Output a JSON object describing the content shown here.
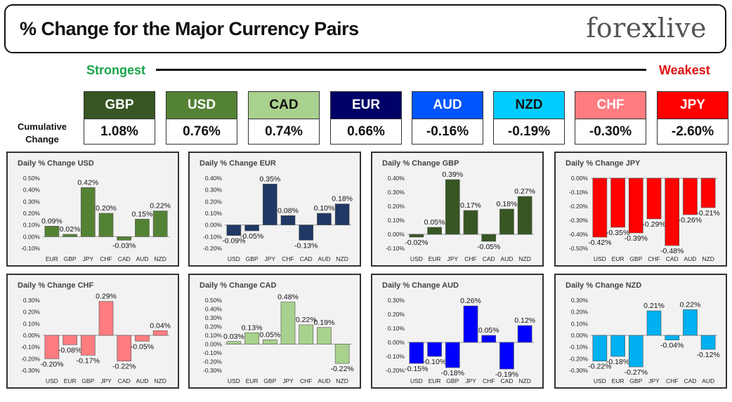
{
  "header": {
    "title": "% Change for the Major Currency Pairs",
    "logo_left": "fore",
    "logo_x": "x",
    "logo_right": "live"
  },
  "scale": {
    "strongest": "Strongest",
    "weakest": "Weakest",
    "cumulative_label": "Cumulative Change"
  },
  "summary": [
    {
      "currency": "GBP",
      "value": "1.08%",
      "color": "#375623",
      "text_color": "#ffffff"
    },
    {
      "currency": "USD",
      "value": "0.76%",
      "color": "#548235",
      "text_color": "#ffffff"
    },
    {
      "currency": "CAD",
      "value": "0.74%",
      "color": "#a9d18e",
      "text_color": "#111111"
    },
    {
      "currency": "EUR",
      "value": "0.66%",
      "color": "#000066",
      "text_color": "#ffffff"
    },
    {
      "currency": "AUD",
      "value": "-0.16%",
      "color": "#0055ff",
      "text_color": "#ffffff"
    },
    {
      "currency": "NZD",
      "value": "-0.19%",
      "color": "#00ccff",
      "text_color": "#111111"
    },
    {
      "currency": "CHF",
      "value": "-0.30%",
      "color": "#ff7c80",
      "text_color": "#ffffff"
    },
    {
      "currency": "JPY",
      "value": "-2.60%",
      "color": "#ff0000",
      "text_color": "#ffffff"
    }
  ],
  "chart_data": [
    {
      "type": "bar",
      "title": "Daily % Change USD",
      "categories": [
        "EUR",
        "GBP",
        "JPY",
        "CHF",
        "CAD",
        "AUD",
        "NZD"
      ],
      "values": [
        0.09,
        0.02,
        0.42,
        0.2,
        -0.03,
        0.15,
        0.22
      ],
      "labels": [
        "0.09%",
        "0.02%",
        "0.42%",
        "0.20%",
        "-0.03%",
        "0.15%",
        "0.22%"
      ],
      "ylim": [
        -0.1,
        0.5
      ],
      "ticks": [
        -0.1,
        0,
        0.1,
        0.2,
        0.3,
        0.4,
        0.5
      ],
      "tick_labels": [
        "-0.10%",
        "0.00%",
        "0.10%",
        "0.20%",
        "0.30%",
        "0.40%",
        "0.50%"
      ],
      "color": "#548235"
    },
    {
      "type": "bar",
      "title": "Daily % Change EUR",
      "categories": [
        "USD",
        "GBP",
        "JPY",
        "CHF",
        "CAD",
        "AUD",
        "NZD"
      ],
      "values": [
        -0.09,
        -0.05,
        0.35,
        0.08,
        -0.13,
        0.1,
        0.18
      ],
      "labels": [
        "-0.09%",
        "-0.05%",
        "0.35%",
        "0.08%",
        "-0.13%",
        "0.10%",
        "0.18%"
      ],
      "ylim": [
        -0.2,
        0.4
      ],
      "ticks": [
        -0.2,
        -0.1,
        0,
        0.1,
        0.2,
        0.3,
        0.4
      ],
      "tick_labels": [
        "-0.20%",
        "-0.10%",
        "0.00%",
        "0.10%",
        "0.20%",
        "0.30%",
        "0.40%"
      ],
      "color": "#203864"
    },
    {
      "type": "bar",
      "title": "Daily % Change GBP",
      "categories": [
        "USD",
        "EUR",
        "JPY",
        "CHF",
        "CAD",
        "AUD",
        "NZD"
      ],
      "values": [
        -0.02,
        0.05,
        0.39,
        0.17,
        -0.05,
        0.18,
        0.27
      ],
      "labels": [
        "-0.02%",
        "0.05%",
        "0.39%",
        "0.17%",
        "-0.05%",
        "0.18%",
        "0.27%"
      ],
      "ylim": [
        -0.1,
        0.4
      ],
      "ticks": [
        -0.1,
        0,
        0.1,
        0.2,
        0.3,
        0.4
      ],
      "tick_labels": [
        "-0.10%",
        "0.00%",
        "0.10%",
        "0.20%",
        "0.30%",
        "0.40%"
      ],
      "color": "#375623"
    },
    {
      "type": "bar",
      "title": "Daily % Change JPY",
      "categories": [
        "USD",
        "EUR",
        "GBP",
        "CHF",
        "CAD",
        "AUD",
        "NZD"
      ],
      "values": [
        -0.42,
        -0.35,
        -0.39,
        -0.29,
        -0.48,
        -0.26,
        -0.21
      ],
      "labels": [
        "-0.42%",
        "-0.35%",
        "-0.39%",
        "-0.29%",
        "-0.48%",
        "-0.26%",
        "-0.21%"
      ],
      "ylim": [
        -0.5,
        0
      ],
      "ticks": [
        -0.5,
        -0.4,
        -0.3,
        -0.2,
        -0.1,
        0
      ],
      "tick_labels": [
        "-0.50%",
        "-0.40%",
        "-0.30%",
        "-0.20%",
        "-0.10%",
        "0.00%"
      ],
      "color": "#ff0000"
    },
    {
      "type": "bar",
      "title": "Daily % Change CHF",
      "categories": [
        "USD",
        "EUR",
        "GBP",
        "JPY",
        "CAD",
        "AUD",
        "NZD"
      ],
      "values": [
        -0.2,
        -0.08,
        -0.17,
        0.29,
        -0.22,
        -0.05,
        0.04
      ],
      "labels": [
        "-0.20%",
        "-0.08%",
        "-0.17%",
        "0.29%",
        "-0.22%",
        "-0.05%",
        "0.04%"
      ],
      "ylim": [
        -0.3,
        0.3
      ],
      "ticks": [
        -0.3,
        -0.2,
        -0.1,
        0,
        0.1,
        0.2,
        0.3
      ],
      "tick_labels": [
        "-0.30%",
        "-0.20%",
        "-0.10%",
        "0.00%",
        "0.10%",
        "0.20%",
        "0.30%"
      ],
      "color": "#ff7c80"
    },
    {
      "type": "bar",
      "title": "Daily % Change CAD",
      "categories": [
        "USD",
        "EUR",
        "GBP",
        "JPY",
        "CHF",
        "AUD",
        "NZD"
      ],
      "values": [
        0.03,
        0.13,
        0.05,
        0.48,
        0.22,
        0.19,
        -0.22
      ],
      "labels": [
        "0.03%",
        "0.13%",
        "0.05%",
        "0.48%",
        "0.22%",
        "0.19%",
        "-0.22%"
      ],
      "ylim": [
        -0.3,
        0.5
      ],
      "ticks": [
        -0.3,
        -0.2,
        -0.1,
        0,
        0.1,
        0.2,
        0.3,
        0.4,
        0.5
      ],
      "tick_labels": [
        "-0.30%",
        "-0.20%",
        "-0.10%",
        "0.00%",
        "0.10%",
        "0.20%",
        "0.30%",
        "0.40%",
        "0.50%"
      ],
      "color": "#a9d18e"
    },
    {
      "type": "bar",
      "title": "Daily % Change AUD",
      "categories": [
        "USD",
        "EUR",
        "GBP",
        "JPY",
        "CHF",
        "CAD",
        "NZD"
      ],
      "values": [
        -0.15,
        -0.1,
        -0.18,
        0.26,
        0.05,
        -0.19,
        0.12
      ],
      "labels": [
        "-0.15%",
        "-0.10%",
        "-0.18%",
        "0.26%",
        "0.05%",
        "-0.19%",
        "0.12%"
      ],
      "ylim": [
        -0.2,
        0.3
      ],
      "ticks": [
        -0.2,
        -0.1,
        0,
        0.1,
        0.2,
        0.3
      ],
      "tick_labels": [
        "-0.20%",
        "-0.10%",
        "0.00%",
        "0.10%",
        "0.20%",
        "0.30%"
      ],
      "color": "#0000ff"
    },
    {
      "type": "bar",
      "title": "Daily % Change NZD",
      "categories": [
        "USD",
        "EUR",
        "GBP",
        "JPY",
        "CHF",
        "CAD",
        "AUD"
      ],
      "values": [
        -0.22,
        -0.18,
        -0.27,
        0.21,
        -0.04,
        0.22,
        -0.12
      ],
      "labels": [
        "-0.22%",
        "-0.18%",
        "-0.27%",
        "0.21%",
        "-0.04%",
        "0.22%",
        "-0.12%"
      ],
      "ylim": [
        -0.3,
        0.3
      ],
      "ticks": [
        -0.3,
        -0.2,
        -0.1,
        0,
        0.1,
        0.2,
        0.3
      ],
      "tick_labels": [
        "-0.30%",
        "-0.20%",
        "-0.10%",
        "0.00%",
        "0.10%",
        "0.20%",
        "0.30%"
      ],
      "color": "#00b0f0"
    }
  ]
}
